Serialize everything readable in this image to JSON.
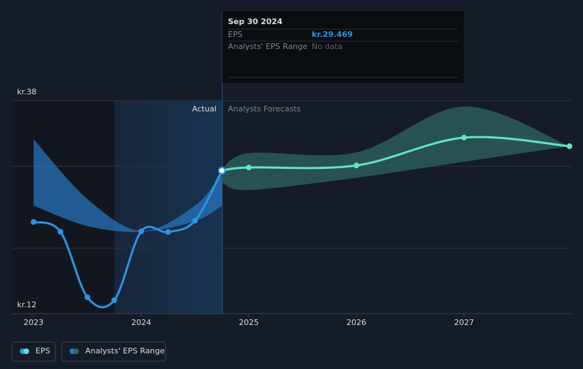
{
  "chart_data": {
    "type": "line",
    "xlim": [
      2022.8,
      2028
    ],
    "ylim": [
      12,
      38
    ],
    "xticks": [
      2023,
      2024,
      2025,
      2026,
      2027
    ],
    "yticks": [
      {
        "value": 12,
        "label": "kr.12"
      },
      {
        "value": 20,
        "label": null
      },
      {
        "value": 30,
        "label": null
      },
      {
        "value": 38,
        "label": "kr.38"
      }
    ],
    "grid": true,
    "section_labels": {
      "actual": "Actual",
      "forecast": "Analysts Forecasts"
    },
    "series": [
      {
        "name": "EPS",
        "color": "#2b95e4",
        "x": [
          2023,
          2023.25,
          2023.5,
          2023.75,
          2024,
          2024.25,
          2024.5,
          2024.75
        ],
        "values": [
          23.2,
          22.0,
          14.0,
          13.65,
          22.05,
          21.97,
          23.35,
          29.469
        ]
      }
    ],
    "forecast": {
      "color": "#5fe3cc",
      "x": [
        2024.75,
        2025,
        2026,
        2027,
        2027.98
      ],
      "values": [
        29.469,
        29.85,
        30.1,
        33.5,
        32.45
      ]
    },
    "range": {
      "name": "Analysts' EPS Range",
      "parts": [
        {
          "color": "#2a79c2",
          "x": [
            2023,
            2023.5,
            2024,
            2024.5,
            2024.75
          ],
          "low": [
            25.2,
            22.7,
            22.0,
            23.3,
            25.2
          ],
          "high": [
            33.3,
            26.0,
            22.1,
            25.2,
            29.2
          ]
        },
        {
          "color": "#2f6a62",
          "x": [
            2024.75,
            2025,
            2026,
            2027,
            2027.98
          ],
          "low": [
            28.0,
            27.1,
            28.6,
            30.55,
            32.45
          ],
          "high": [
            29.469,
            31.6,
            31.7,
            37.3,
            32.45
          ]
        }
      ]
    },
    "tooltip": {
      "date": "Sep 30 2024",
      "rows": [
        {
          "label": "EPS",
          "value": 29.469,
          "value_label": "kr.29.469"
        },
        {
          "label": "Analysts' EPS Range",
          "value_label": "No data"
        }
      ]
    }
  }
}
